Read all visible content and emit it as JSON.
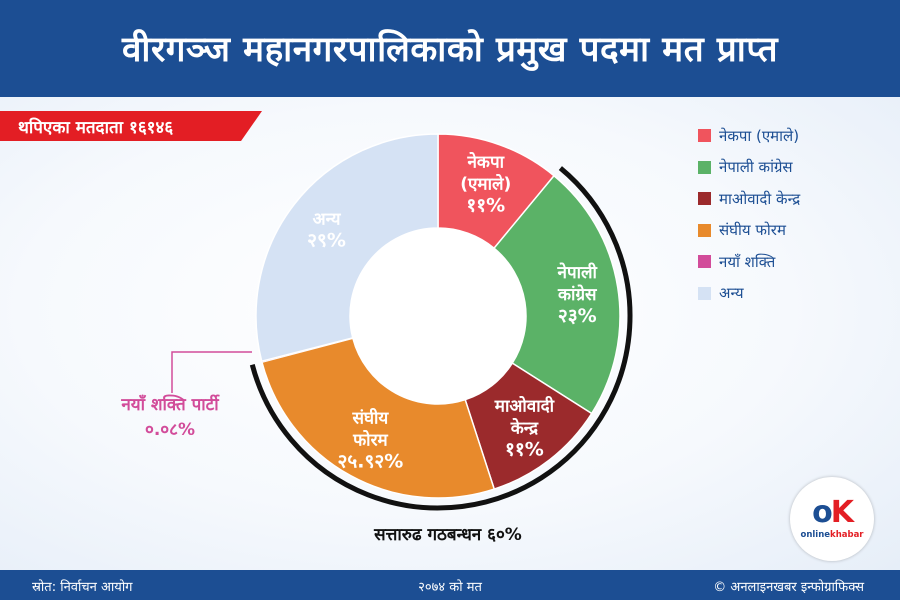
{
  "header": {
    "title": "वीरगञ्ज महानगरपालिकाको प्रमुख पदमा मत प्राप्त"
  },
  "voters_tag": "थपिएका मतदाता १६१४६",
  "chart_data": {
    "type": "pie",
    "slices": [
      {
        "legend": "नेकपा (एमाले)",
        "label_lines": [
          "नेकपा",
          "(एमाले)",
          "११%"
        ],
        "value": 11,
        "color": "#f0545d"
      },
      {
        "legend": "नेपाली कांग्रेस",
        "label_lines": [
          "नेपाली",
          "कांग्रेस",
          "२३%"
        ],
        "value": 23,
        "color": "#5bb267"
      },
      {
        "legend": "माओवादी केन्द्र",
        "label_lines": [
          "माओवादी",
          "केन्द्र",
          "११%"
        ],
        "value": 11,
        "color": "#9b2a2c"
      },
      {
        "legend": "संघीय फोरम",
        "label_lines": [
          "संघीय",
          "फोरम",
          "२५.९२%"
        ],
        "value": 25.92,
        "color": "#e88a2c"
      },
      {
        "legend": "नयाँ शक्ति",
        "label_lines": [],
        "value": 0.08,
        "color": "#d24c9a"
      },
      {
        "legend": "अन्य",
        "label_lines": [
          "अन्य",
          "२९%"
        ],
        "value": 29,
        "color": "#d5e2f4"
      }
    ],
    "callout": {
      "name": "नयाँ शक्ति पार्टी",
      "value": "०.०८%"
    },
    "annotation": "सत्तारुढ गठबन्धन ६०%"
  },
  "logo": {
    "mark_o": "o",
    "mark_k": "K",
    "word_a": "online",
    "word_b": "khabar"
  },
  "footer": {
    "source": "स्रोत: निर्वाचन आयोग",
    "year": "२०७४ को मत",
    "credit": "© अनलाइनखबर इन्फोग्राफिक्स"
  },
  "colors": {
    "brand_blue": "#1c4e93",
    "brand_red": "#e31e24",
    "callout_pink": "#d24c9a"
  }
}
